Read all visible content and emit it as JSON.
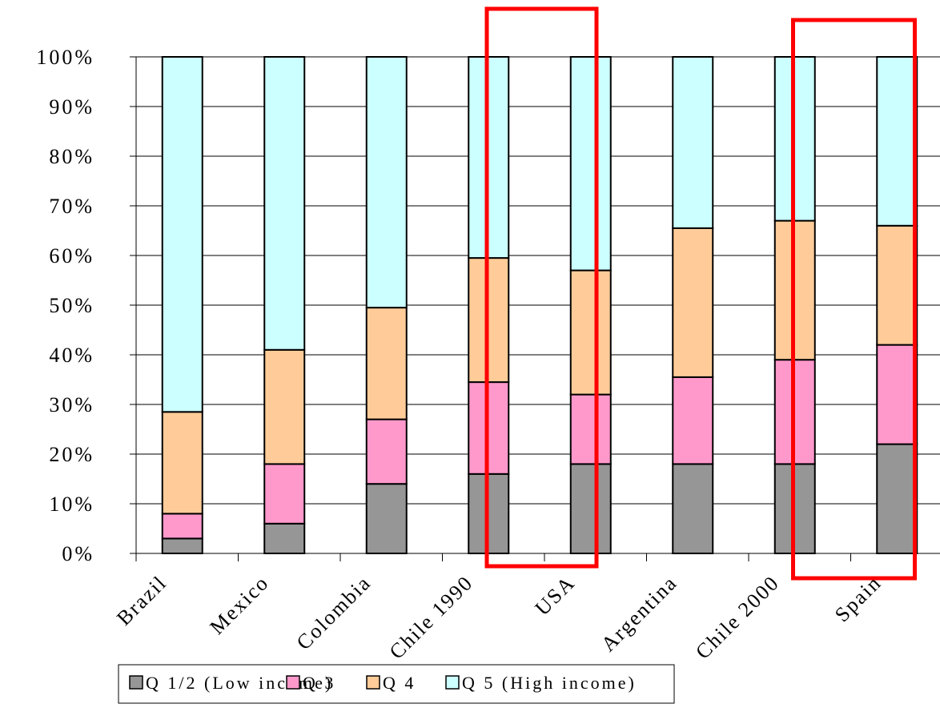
{
  "chart_data": {
    "type": "bar",
    "stacked": true,
    "percent": true,
    "categories": [
      "Brazil",
      "Mexico",
      "Colombia",
      "Chile 1990",
      "USA",
      "Argentina",
      "Chile 2000",
      "Spain"
    ],
    "series": [
      {
        "name": "Q 1/2 (Low income)",
        "color": "#969696",
        "values": [
          3,
          6,
          14,
          16,
          18,
          18,
          18,
          22
        ]
      },
      {
        "name": "Q 3",
        "color": "#ff99cc",
        "values": [
          5,
          12,
          13,
          18.5,
          14,
          17.5,
          21,
          20
        ]
      },
      {
        "name": "Q 4",
        "color": "#ffcc99",
        "values": [
          20.5,
          23,
          22.5,
          25,
          25,
          30,
          28,
          24
        ]
      },
      {
        "name": "Q 5 (High income)",
        "color": "#ccffff",
        "values": [
          71.5,
          59,
          50.5,
          40.5,
          43,
          34.5,
          33,
          34
        ]
      }
    ],
    "ylim": [
      0,
      100
    ],
    "yticks": [
      "0%",
      "10%",
      "20%",
      "30%",
      "40%",
      "50%",
      "60%",
      "70%",
      "80%",
      "90%",
      "100%"
    ],
    "xlabel": "",
    "ylabel": "",
    "title": "",
    "grid": true,
    "legend_position": "bottom",
    "highlighted_categories": [
      "Chile 1990",
      "Chile 2000"
    ],
    "highlight_color": "#ff0000"
  }
}
